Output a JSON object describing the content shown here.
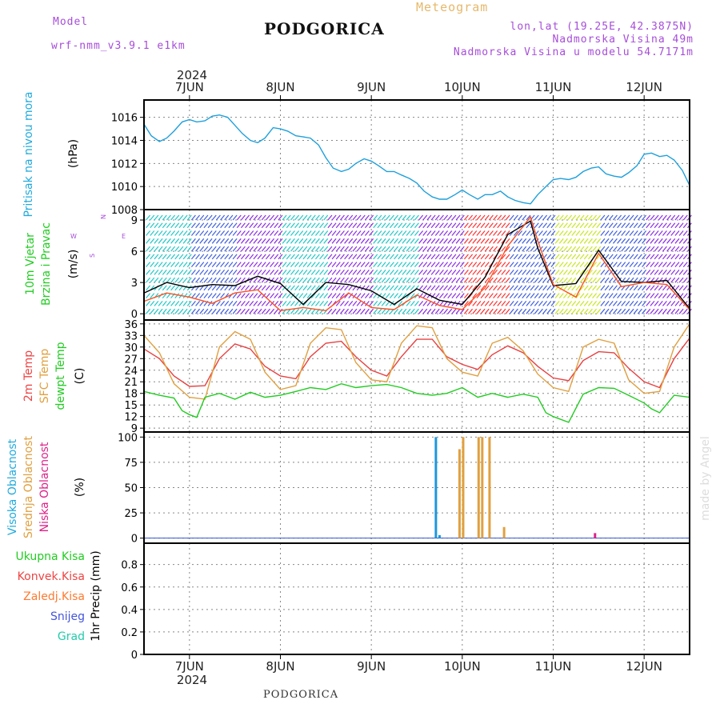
{
  "header": {
    "model_label": "Model",
    "model_name": "wrf-nmm_v3.9.1 e1km",
    "title": "PODGORICA",
    "meteogram": "Meteogram",
    "lonlat": "lon,lat (19.25E, 42.3875N)",
    "altitude": "Nadmorska Visina 49m",
    "model_altitude": "Nadmorska Visina u modelu 54.7171m",
    "footer": "PODGORICA",
    "watermark": "made by Angel"
  },
  "time_axis": {
    "year": "2024",
    "day_labels": [
      "7JUN",
      "8JUN",
      "9JUN",
      "10JUN",
      "11JUN",
      "12JUN"
    ],
    "day_positions": [
      1,
      2,
      3,
      4,
      5,
      6
    ],
    "range": [
      0.5,
      6.5
    ]
  },
  "panels": {
    "pressure": {
      "labels": [
        {
          "text": "Pritisak na nivou mora",
          "color": "#22aadd"
        }
      ],
      "unit": "(hPa)",
      "yticks": [
        1008,
        1010,
        1012,
        1014,
        1016
      ],
      "ylim": [
        1008,
        1017.5
      ],
      "series": [
        {
          "color": "#1ea0dc",
          "x": [
            0.5,
            0.58,
            0.67,
            0.75,
            0.83,
            0.92,
            1.0,
            1.08,
            1.17,
            1.25,
            1.33,
            1.42,
            1.5,
            1.58,
            1.67,
            1.75,
            1.83,
            1.92,
            2.0,
            2.08,
            2.17,
            2.25,
            2.33,
            2.42,
            2.5,
            2.58,
            2.67,
            2.75,
            2.83,
            2.92,
            3.0,
            3.08,
            3.17,
            3.25,
            3.33,
            3.42,
            3.5,
            3.58,
            3.67,
            3.75,
            3.83,
            3.92,
            4.0,
            4.08,
            4.17,
            4.25,
            4.33,
            4.42,
            4.5,
            4.58,
            4.67,
            4.75,
            4.83,
            4.92,
            5.0,
            5.08,
            5.17,
            5.25,
            5.33,
            5.42,
            5.5,
            5.58,
            5.67,
            5.75,
            5.83,
            5.92,
            6.0,
            6.08,
            6.17,
            6.25,
            6.33,
            6.42,
            6.5
          ],
          "y": [
            1015.4,
            1014.4,
            1013.9,
            1014.2,
            1014.8,
            1015.6,
            1015.8,
            1015.6,
            1015.7,
            1016.1,
            1016.2,
            1016.0,
            1015.3,
            1014.6,
            1014.0,
            1013.8,
            1014.2,
            1015.1,
            1015.0,
            1014.8,
            1014.4,
            1014.3,
            1014.2,
            1013.6,
            1012.5,
            1011.6,
            1011.3,
            1011.5,
            1012.0,
            1012.4,
            1012.2,
            1011.8,
            1011.3,
            1011.3,
            1011.0,
            1010.7,
            1010.3,
            1009.6,
            1009.1,
            1008.9,
            1008.9,
            1009.3,
            1009.7,
            1009.3,
            1008.9,
            1009.3,
            1009.3,
            1009.6,
            1009.1,
            1008.8,
            1008.6,
            1008.5,
            1009.3,
            1010.0,
            1010.6,
            1010.7,
            1010.6,
            1010.8,
            1011.3,
            1011.6,
            1011.7,
            1011.1,
            1010.9,
            1010.8,
            1011.2,
            1011.8,
            1012.8,
            1012.9,
            1012.6,
            1012.7,
            1012.3,
            1011.4,
            1010.1
          ]
        }
      ]
    },
    "wind": {
      "labels": [
        {
          "text": "10m Vjetar",
          "color": "#22cc22"
        },
        {
          "text": "Brzina i Pravac",
          "color": "#22cc22"
        }
      ],
      "unit": "(m/s)",
      "compass": {
        "n": "N",
        "s": "S",
        "w": "W",
        "e": "E"
      },
      "yticks": [
        0,
        3,
        6,
        9
      ],
      "ylim": [
        -0.6,
        10.0
      ],
      "barb_colors": [
        "#1ec8c8",
        "#3f5fe0",
        "#8c2ce6",
        "#1ec8c8",
        "#8c2ce6",
        "#1ec8c8",
        "#8c2ce6",
        "#ff3030",
        "#3f5fe0",
        "#c8e61e",
        "#3f5fe0",
        "#8c2ce6"
      ],
      "series": [
        {
          "color": "#000000",
          "x": [
            0.5,
            0.75,
            1.0,
            1.25,
            1.5,
            1.75,
            2.0,
            2.25,
            2.5,
            2.75,
            3.0,
            3.25,
            3.5,
            3.75,
            4.0,
            4.25,
            4.5,
            4.75,
            4.83,
            5.0,
            5.25,
            5.5,
            5.75,
            6.0,
            6.25,
            6.5
          ],
          "y": [
            2.0,
            3.0,
            2.5,
            2.8,
            2.7,
            3.6,
            2.9,
            0.9,
            3.0,
            2.8,
            2.2,
            0.9,
            2.4,
            1.3,
            0.9,
            3.5,
            7.6,
            8.9,
            6.3,
            2.7,
            2.9,
            6.1,
            3.1,
            3.0,
            3.2,
            0.5
          ]
        },
        {
          "color": "#ff5020",
          "x": [
            0.5,
            0.75,
            1.0,
            1.25,
            1.5,
            1.75,
            2.0,
            2.25,
            2.5,
            2.75,
            3.0,
            3.25,
            3.5,
            3.75,
            4.0,
            4.25,
            4.5,
            4.75,
            4.83,
            5.0,
            5.25,
            5.5,
            5.75,
            6.0,
            6.25,
            6.5
          ],
          "y": [
            1.2,
            2.0,
            1.6,
            1.0,
            2.0,
            2.3,
            0.3,
            0.6,
            0.3,
            2.0,
            0.6,
            0.4,
            1.8,
            0.8,
            0.4,
            2.5,
            6.5,
            9.3,
            7.0,
            2.8,
            1.6,
            5.8,
            2.6,
            3.0,
            2.8,
            0.4
          ]
        }
      ]
    },
    "temperature": {
      "labels": [
        {
          "text": "2m Temp",
          "color": "#ee4444"
        },
        {
          "text": "SFC Temp",
          "color": "#e0a040"
        },
        {
          "text": "dewpt Temp",
          "color": "#22cc22"
        }
      ],
      "unit": "(C)",
      "yticks": [
        9,
        12,
        15,
        18,
        21,
        24,
        27,
        30,
        33,
        36
      ],
      "ylim": [
        8,
        37
      ],
      "series": [
        {
          "name": "2m Temp",
          "color": "#e84040",
          "x": [
            0.5,
            0.67,
            0.83,
            1.0,
            1.17,
            1.33,
            1.5,
            1.67,
            1.83,
            2.0,
            2.17,
            2.33,
            2.5,
            2.67,
            2.83,
            3.0,
            3.17,
            3.33,
            3.5,
            3.67,
            3.83,
            4.0,
            4.17,
            4.33,
            4.5,
            4.67,
            4.83,
            5.0,
            5.17,
            5.33,
            5.5,
            5.67,
            5.83,
            6.0,
            6.17,
            6.33,
            6.5
          ],
          "y": [
            29.5,
            27.0,
            22.5,
            19.8,
            20.0,
            27.0,
            30.8,
            29.5,
            25.0,
            22.5,
            21.8,
            27.5,
            31.0,
            31.5,
            27.5,
            24.0,
            22.5,
            27.5,
            32.0,
            32.0,
            27.5,
            25.5,
            24.2,
            28.0,
            30.3,
            28.5,
            25.0,
            22.0,
            21.3,
            26.5,
            28.8,
            28.5,
            24.5,
            21.0,
            19.5,
            27.0,
            32.3
          ]
        },
        {
          "name": "SFC Temp",
          "color": "#e0a040",
          "x": [
            0.5,
            0.67,
            0.83,
            1.0,
            1.17,
            1.33,
            1.5,
            1.67,
            1.83,
            2.0,
            2.17,
            2.33,
            2.5,
            2.67,
            2.83,
            3.0,
            3.17,
            3.33,
            3.5,
            3.67,
            3.83,
            4.0,
            4.17,
            4.33,
            4.5,
            4.67,
            4.83,
            5.0,
            5.17,
            5.33,
            5.5,
            5.67,
            5.83,
            6.0,
            6.17,
            6.33,
            6.5
          ],
          "y": [
            33.0,
            28.5,
            20.5,
            17.0,
            16.5,
            30.0,
            34.0,
            32.0,
            23.5,
            19.0,
            20.0,
            31.0,
            35.0,
            34.5,
            26.0,
            21.5,
            21.0,
            31.0,
            35.5,
            35.0,
            27.0,
            23.5,
            22.5,
            31.0,
            32.5,
            29.0,
            23.0,
            19.5,
            18.5,
            30.0,
            32.0,
            31.0,
            21.5,
            18.0,
            18.5,
            30.0,
            36.0
          ]
        },
        {
          "name": "dewpt Temp",
          "color": "#22cc22",
          "x": [
            0.5,
            0.67,
            0.83,
            0.92,
            1.0,
            1.08,
            1.17,
            1.33,
            1.5,
            1.67,
            1.83,
            2.0,
            2.17,
            2.33,
            2.5,
            2.67,
            2.83,
            3.0,
            3.17,
            3.33,
            3.5,
            3.67,
            3.83,
            4.0,
            4.17,
            4.33,
            4.5,
            4.67,
            4.83,
            4.92,
            5.0,
            5.17,
            5.33,
            5.5,
            5.67,
            5.83,
            6.0,
            6.08,
            6.17,
            6.33,
            6.5
          ],
          "y": [
            18.5,
            17.5,
            16.8,
            13.5,
            12.5,
            11.8,
            17.0,
            18.0,
            16.5,
            18.3,
            17.0,
            17.5,
            18.5,
            19.5,
            19.0,
            20.5,
            19.5,
            20.0,
            20.3,
            19.5,
            18.0,
            17.5,
            18.0,
            19.5,
            17.0,
            18.0,
            17.0,
            17.8,
            17.0,
            13.0,
            12.0,
            10.5,
            17.8,
            19.5,
            19.3,
            17.5,
            15.5,
            14.0,
            13.0,
            17.5,
            17.0
          ]
        }
      ]
    },
    "clouds": {
      "labels": [
        {
          "text": "Visoka Oblacnost",
          "color": "#22aadd"
        },
        {
          "text": "Srednja Oblacnost",
          "color": "#e0a040"
        },
        {
          "text": "Niska Oblacnost",
          "color": "#dd2288"
        }
      ],
      "unit": "(%)",
      "yticks": [
        0,
        25,
        50,
        75,
        100
      ],
      "ylim": [
        -5,
        105
      ],
      "bars": [
        {
          "layer": "high",
          "color": "#1e96dc",
          "x": 3.71,
          "value": 100
        },
        {
          "layer": "high",
          "color": "#1e96dc",
          "x": 3.75,
          "value": 3
        },
        {
          "layer": "mid",
          "color": "#e0a040",
          "x": 3.97,
          "value": 88
        },
        {
          "layer": "mid",
          "color": "#e0a040",
          "x": 4.01,
          "value": 100
        },
        {
          "layer": "mid",
          "color": "#e0a040",
          "x": 4.18,
          "value": 100
        },
        {
          "layer": "mid",
          "color": "#e0a040",
          "x": 4.22,
          "value": 100
        },
        {
          "layer": "mid",
          "color": "#e0a040",
          "x": 4.3,
          "value": 100
        },
        {
          "layer": "mid",
          "color": "#e0a040",
          "x": 4.46,
          "value": 11
        },
        {
          "layer": "low",
          "color": "#dd2288",
          "x": 5.46,
          "value": 5
        }
      ]
    },
    "precip": {
      "labels": [
        {
          "text": "Ukupna Kisa",
          "color": "#22cc22"
        },
        {
          "text": "Konvek.Kisa",
          "color": "#ee4444"
        },
        {
          "text": "Zaledj.Kisa",
          "color": "#ff7a30"
        },
        {
          "text": "Snijeg",
          "color": "#4455dd"
        },
        {
          "text": "Grad",
          "color": "#22ccaa"
        }
      ],
      "ylabel": "1hr Precip (mm)",
      "yticks": [
        0,
        0.2,
        0.4,
        0.6,
        0.8
      ],
      "ylim": [
        0,
        0.99
      ],
      "series": []
    }
  },
  "chart_data": {
    "type": "line",
    "title": "PODGORICA",
    "x_categories": [
      "7JUN",
      "8JUN",
      "9JUN",
      "10JUN",
      "11JUN",
      "12JUN"
    ],
    "grid": true,
    "panels": [
      {
        "name": "Pritisak na nivou mora",
        "ylabel": "(hPa)",
        "ylim": [
          1008,
          1017.5
        ]
      },
      {
        "name": "10m Vjetar Brzina i Pravac",
        "ylabel": "(m/s)",
        "ylim": [
          -0.6,
          10
        ]
      },
      {
        "name": "2m Temp / SFC Temp / dewpt Temp",
        "ylabel": "(C)",
        "ylim": [
          8,
          37
        ]
      },
      {
        "name": "Visoka / Srednja / Niska Oblacnost",
        "ylabel": "(%)",
        "ylim": [
          -5,
          105
        ]
      },
      {
        "name": "Ukupna Kisa / Konvek.Kisa / Zaledj.Kisa / Snijeg / Grad",
        "ylabel": "1hr Precip (mm)",
        "ylim": [
          0,
          0.99
        ]
      }
    ]
  }
}
